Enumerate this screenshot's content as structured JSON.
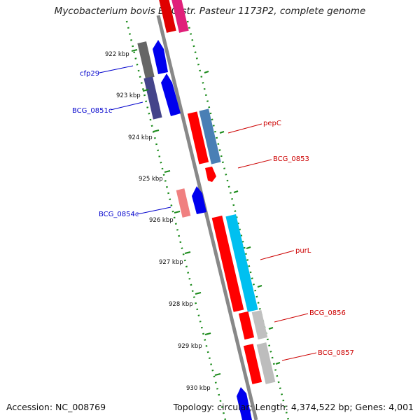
{
  "title": "Mycobacterium bovis BCG str. Pasteur 1173P2, complete genome",
  "footer": {
    "accession": "Accession: NC_008769",
    "summary": "Topology: circular; Length: 4,374,522 bp; Genes: 4,001"
  },
  "ticks": [
    {
      "label": "922 kbp"
    },
    {
      "label": "923 kbp"
    },
    {
      "label": "924 kbp"
    },
    {
      "label": "925 kbp"
    },
    {
      "label": "926 kbp"
    },
    {
      "label": "927 kbp"
    },
    {
      "label": "928 kbp"
    },
    {
      "label": "929 kbp"
    },
    {
      "label": "930 kbp"
    }
  ],
  "gene_labels": [
    {
      "text": "cfp29",
      "color": "#0000cc"
    },
    {
      "text": "BCG_0851c",
      "color": "#0000cc"
    },
    {
      "text": "BCG_0854c",
      "color": "#0000cc"
    },
    {
      "text": "pepC",
      "color": "#cc0000"
    },
    {
      "text": "BCG_0853",
      "color": "#cc0000"
    },
    {
      "text": "purL",
      "color": "#cc0000"
    },
    {
      "text": "BCG_0856",
      "color": "#cc0000"
    },
    {
      "text": "BCG_0857",
      "color": "#cc0000"
    }
  ],
  "colors": {
    "backbone": "#888888",
    "dotted_track": "#1a8a1a",
    "forward_cds": "#ff0000",
    "reverse_cds": "#0000ff"
  }
}
